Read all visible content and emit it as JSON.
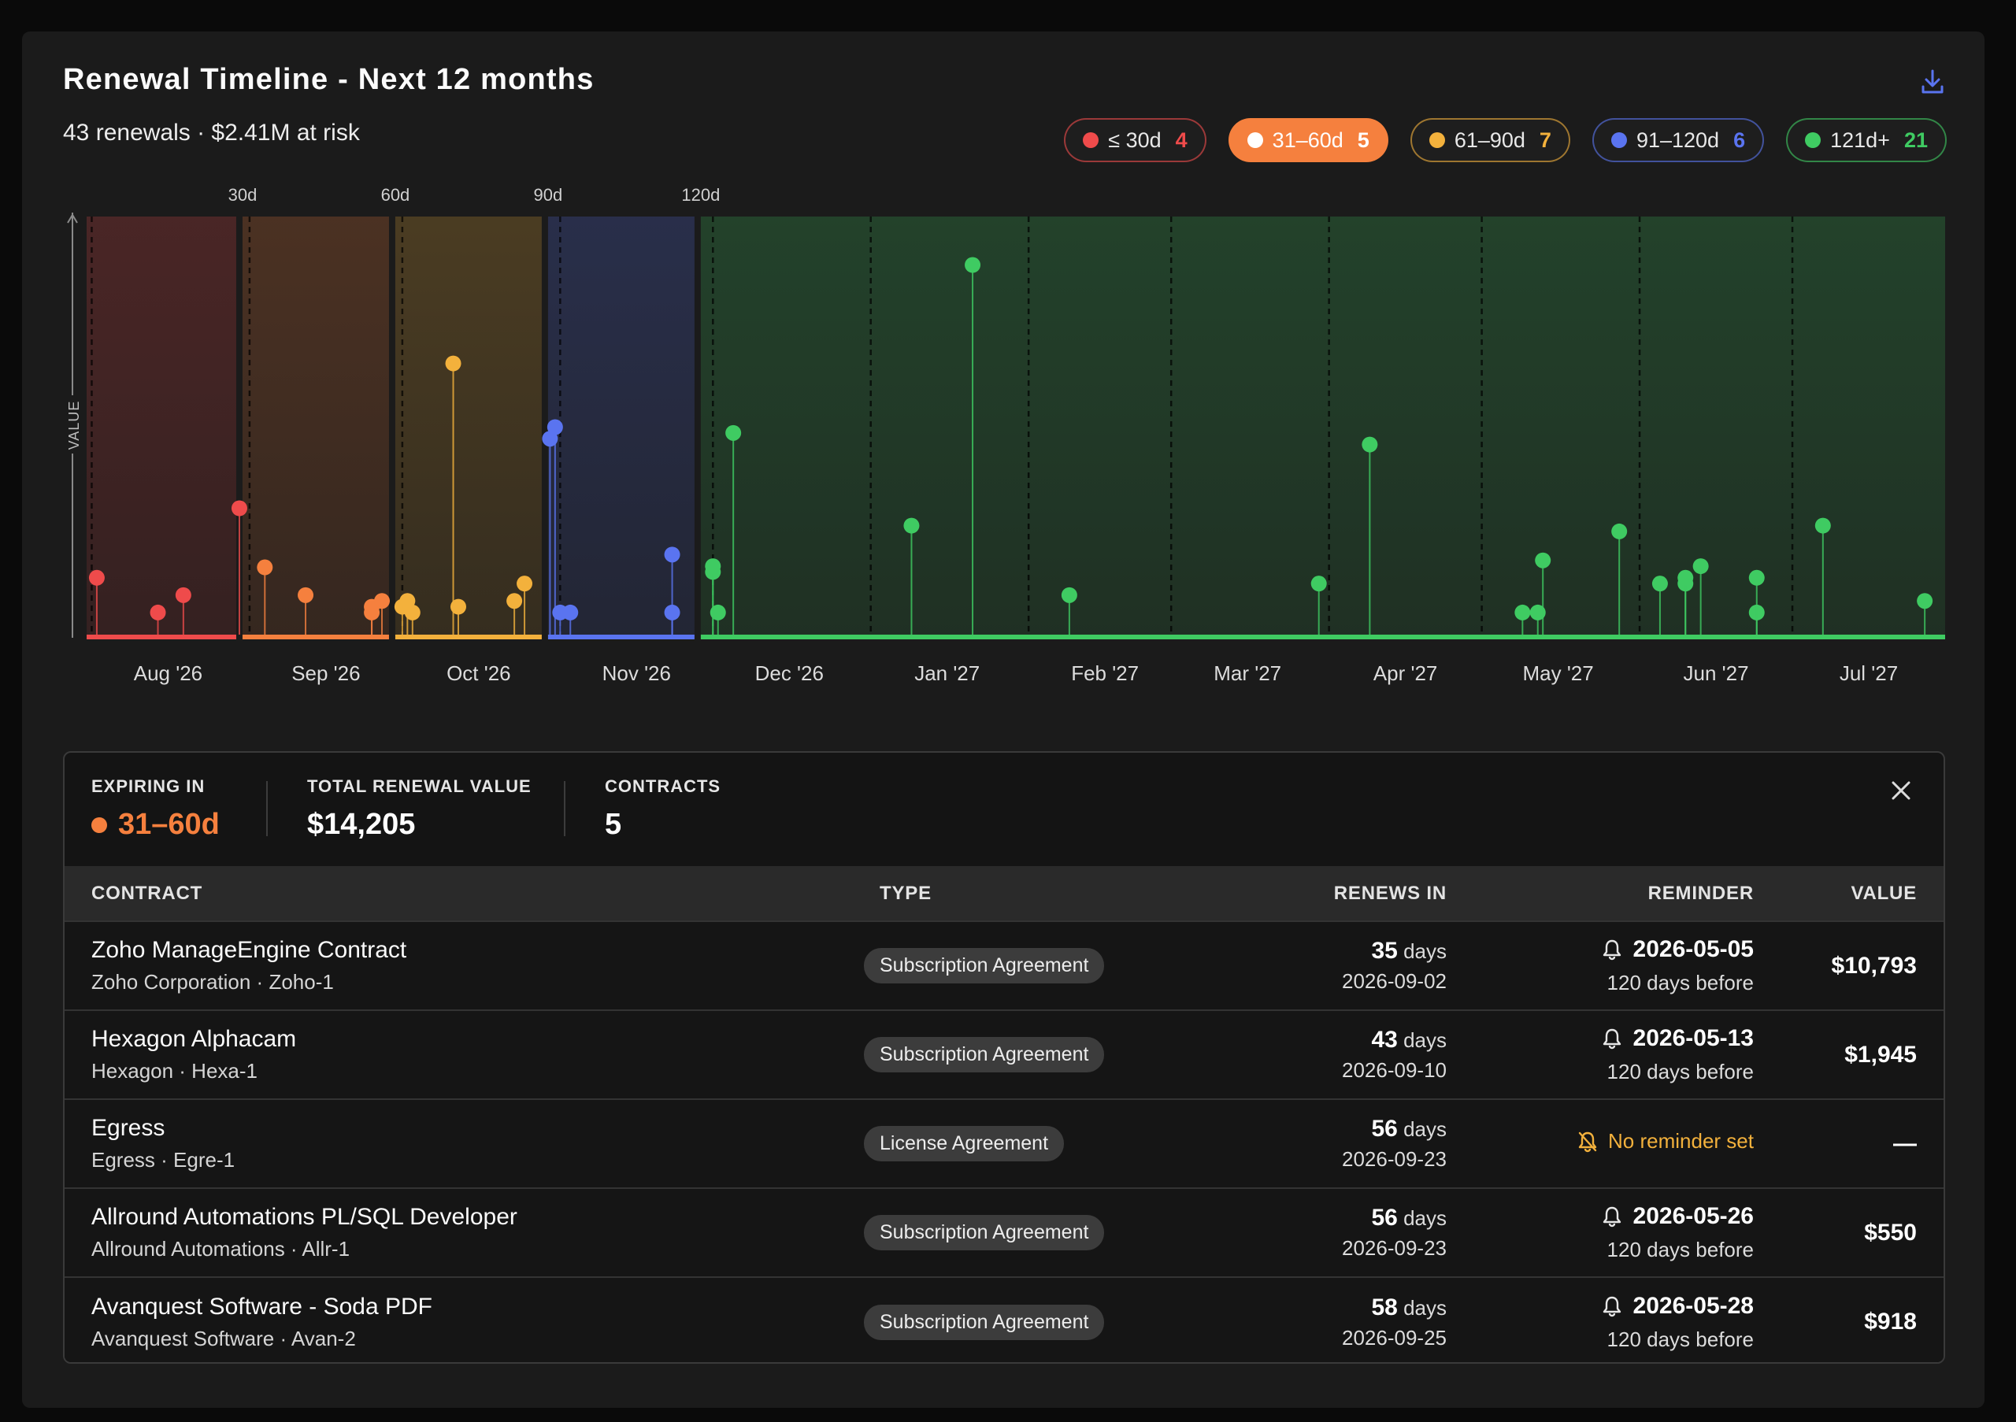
{
  "header": {
    "title": "Renewal Timeline - Next 12 months",
    "subtitle": "43 renewals · $2.41M at risk"
  },
  "buckets": [
    {
      "label": "≤ 30d",
      "count": "4",
      "color": "#ef4b4b",
      "active": false
    },
    {
      "label": "31–60d",
      "count": "5",
      "color": "#f5803e",
      "active": true
    },
    {
      "label": "61–90d",
      "count": "7",
      "color": "#f3b13c",
      "active": false
    },
    {
      "label": "91–120d",
      "count": "6",
      "color": "#5a74f0",
      "active": false
    },
    {
      "label": "121d+",
      "count": "21",
      "color": "#3fcb62",
      "active": false
    }
  ],
  "chart_data": {
    "type": "scatter",
    "xlabel": "",
    "ylabel": "VALUE",
    "x_unit": "days from today",
    "x_range": [
      0,
      365
    ],
    "x_ticks": [
      {
        "label": "Aug '26",
        "day": 16
      },
      {
        "label": "Sep '26",
        "day": 47
      },
      {
        "label": "Oct '26",
        "day": 77
      },
      {
        "label": "Nov '26",
        "day": 108
      },
      {
        "label": "Dec '26",
        "day": 138
      },
      {
        "label": "Jan '27",
        "day": 169
      },
      {
        "label": "Feb '27",
        "day": 200
      },
      {
        "label": "Mar '27",
        "day": 228
      },
      {
        "label": "Apr '27",
        "day": 259
      },
      {
        "label": "May '27",
        "day": 289
      },
      {
        "label": "Jun '27",
        "day": 320
      },
      {
        "label": "Jul '27",
        "day": 350
      }
    ],
    "threshold_labels": [
      {
        "label": "30d",
        "day": 30
      },
      {
        "label": "60d",
        "day": 60
      },
      {
        "label": "90d",
        "day": 90
      },
      {
        "label": "120d",
        "day": 120
      }
    ],
    "bands": [
      {
        "bucket": "≤ 30d",
        "from": 0,
        "to": 30,
        "color": "#ef4b4b"
      },
      {
        "bucket": "31–60d",
        "from": 30,
        "to": 60,
        "color": "#f5803e"
      },
      {
        "bucket": "61–90d",
        "from": 60,
        "to": 90,
        "color": "#f3b13c"
      },
      {
        "bucket": "91–120d",
        "from": 90,
        "to": 120,
        "color": "#5a74f0"
      },
      {
        "bucket": "121d+",
        "from": 120,
        "to": 365,
        "color": "#3fcb62"
      }
    ],
    "series": [
      {
        "bucket": "≤ 30d",
        "color": "#ef4b4b",
        "points": [
          [
            2,
            9
          ],
          [
            14,
            3
          ],
          [
            19,
            6
          ],
          [
            30,
            21
          ]
        ]
      },
      {
        "bucket": "31–60d",
        "color": "#f5803e",
        "points": [
          [
            35,
            10.8
          ],
          [
            43,
            6
          ],
          [
            56,
            3
          ],
          [
            56,
            4
          ],
          [
            58,
            5
          ]
        ]
      },
      {
        "bucket": "61–90d",
        "color": "#f3b13c",
        "points": [
          [
            62,
            4
          ],
          [
            63,
            5
          ],
          [
            64,
            3
          ],
          [
            72,
            46
          ],
          [
            73,
            4
          ],
          [
            84,
            5
          ],
          [
            86,
            8
          ]
        ]
      },
      {
        "bucket": "91–120d",
        "color": "#5a74f0",
        "points": [
          [
            91,
            33
          ],
          [
            92,
            35
          ],
          [
            93,
            3
          ],
          [
            95,
            3
          ],
          [
            115,
            13
          ],
          [
            115,
            3
          ]
        ]
      },
      {
        "bucket": "121d+",
        "color": "#3fcb62",
        "points": [
          [
            123,
            10
          ],
          [
            123,
            11
          ],
          [
            124,
            3
          ],
          [
            127,
            34
          ],
          [
            162,
            18
          ],
          [
            174,
            63
          ],
          [
            193,
            6
          ],
          [
            242,
            8
          ],
          [
            252,
            32
          ],
          [
            282,
            3
          ],
          [
            285,
            3
          ],
          [
            286,
            12
          ],
          [
            301,
            17
          ],
          [
            309,
            8
          ],
          [
            314,
            8
          ],
          [
            314,
            9
          ],
          [
            317,
            11
          ],
          [
            328,
            3
          ],
          [
            328,
            9
          ],
          [
            341,
            18
          ],
          [
            361,
            5
          ]
        ]
      }
    ]
  },
  "detail": {
    "expiring_label": "EXPIRING IN",
    "expiring_value": "31–60d",
    "total_label": "TOTAL RENEWAL VALUE",
    "total_value": "$14,205",
    "contracts_label": "CONTRACTS",
    "contracts_value": "5",
    "columns": {
      "contract": "CONTRACT",
      "type": "TYPE",
      "renews": "RENEWS IN",
      "reminder": "REMINDER",
      "value": "VALUE"
    },
    "rows": [
      {
        "name": "Zoho ManageEngine Contract",
        "vendor": "Zoho Corporation · Zoho-1",
        "type": "Subscription Agreement",
        "days": "35",
        "days_unit": "days",
        "date": "2026-09-02",
        "reminder_date": "2026-05-05",
        "reminder_note": "120 days before",
        "value": "$10,793"
      },
      {
        "name": "Hexagon Alphacam",
        "vendor": "Hexagon · Hexa-1",
        "type": "Subscription Agreement",
        "days": "43",
        "days_unit": "days",
        "date": "2026-09-10",
        "reminder_date": "2026-05-13",
        "reminder_note": "120 days before",
        "value": "$1,945"
      },
      {
        "name": "Egress",
        "vendor": "Egress · Egre-1",
        "type": "License Agreement",
        "days": "56",
        "days_unit": "days",
        "date": "2026-09-23",
        "reminder_date": "",
        "reminder_note": "No reminder set",
        "value": "—"
      },
      {
        "name": "Allround Automations PL/SQL Developer",
        "vendor": "Allround Automations · Allr-1",
        "type": "Subscription Agreement",
        "days": "56",
        "days_unit": "days",
        "date": "2026-09-23",
        "reminder_date": "2026-05-26",
        "reminder_note": "120 days before",
        "value": "$550"
      },
      {
        "name": "Avanquest Software - Soda PDF",
        "vendor": "Avanquest Software · Avan-2",
        "type": "Subscription Agreement",
        "days": "58",
        "days_unit": "days",
        "date": "2026-09-25",
        "reminder_date": "2026-05-28",
        "reminder_note": "120 days before",
        "value": "$918"
      }
    ]
  }
}
